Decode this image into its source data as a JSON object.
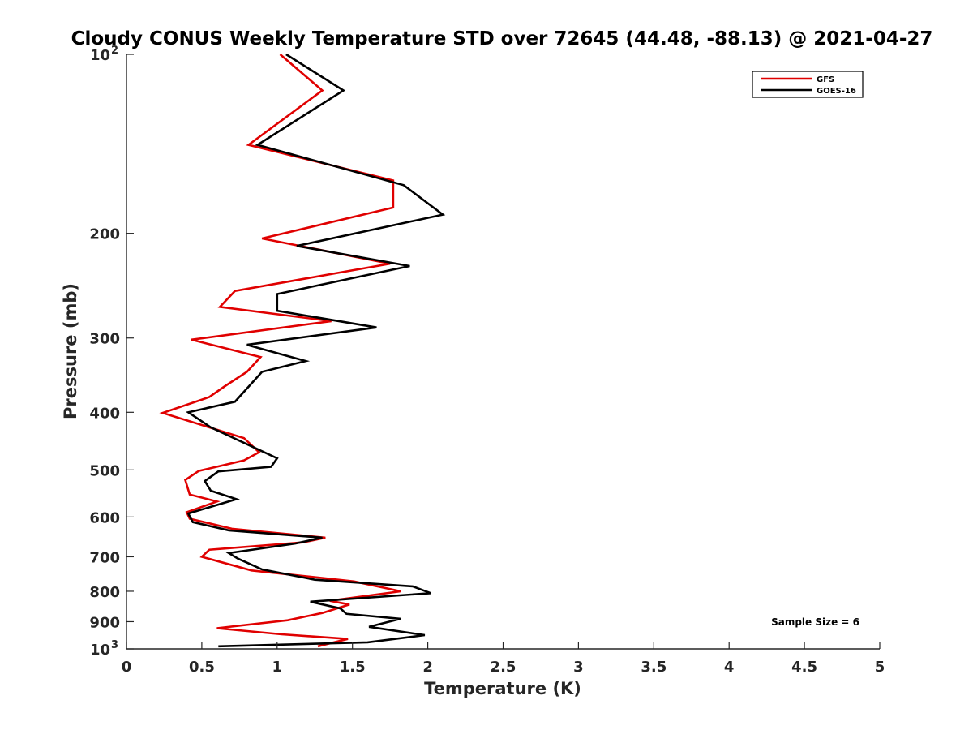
{
  "chart_data": {
    "type": "line",
    "title": "Cloudy CONUS Weekly Temperature STD over 72645 (44.48, -88.13) @ 2021-04-27",
    "xlabel": "Temperature (K)",
    "ylabel": "Pressure (mb)",
    "xlim": [
      0,
      5
    ],
    "ylim": [
      100,
      1000
    ],
    "y_scale": "log",
    "y_reversed": true,
    "grid": false,
    "legend_position": "top-right",
    "x_ticks": [
      "0",
      "0.5",
      "1",
      "1.5",
      "2",
      "2.5",
      "3",
      "3.5",
      "4",
      "4.5",
      "5"
    ],
    "y_ticks": [
      {
        "value": 100,
        "base": "10",
        "exp": "2"
      },
      {
        "value": 200,
        "label": "200"
      },
      {
        "value": 300,
        "label": "300"
      },
      {
        "value": 400,
        "label": "400"
      },
      {
        "value": 500,
        "label": "500"
      },
      {
        "value": 600,
        "label": "600"
      },
      {
        "value": 700,
        "label": "700"
      },
      {
        "value": 800,
        "label": "800"
      },
      {
        "value": 900,
        "label": "900"
      },
      {
        "value": 1000,
        "base": "10",
        "exp": "3"
      }
    ],
    "annotation": "Sample Size = 6",
    "series": [
      {
        "name": "GFS",
        "color": "#e00000",
        "points": [
          [
            1.02,
            100
          ],
          [
            1.3,
            115
          ],
          [
            0.81,
            142
          ],
          [
            1.77,
            163
          ],
          [
            1.77,
            181
          ],
          [
            0.9,
            204
          ],
          [
            1.75,
            225
          ],
          [
            0.72,
            250
          ],
          [
            0.62,
            266
          ],
          [
            1.36,
            281
          ],
          [
            0.43,
            302
          ],
          [
            0.89,
            323
          ],
          [
            0.8,
            342
          ],
          [
            0.65,
            362
          ],
          [
            0.55,
            377
          ],
          [
            0.24,
            401
          ],
          [
            0.78,
            442
          ],
          [
            0.88,
            467
          ],
          [
            0.78,
            482
          ],
          [
            0.48,
            502
          ],
          [
            0.39,
            520
          ],
          [
            0.42,
            550
          ],
          [
            0.6,
            565
          ],
          [
            0.4,
            589
          ],
          [
            0.42,
            604
          ],
          [
            0.7,
            628
          ],
          [
            1.32,
            650
          ],
          [
            1.17,
            662
          ],
          [
            0.55,
            681
          ],
          [
            0.5,
            700
          ],
          [
            0.83,
            738
          ],
          [
            1.51,
            770
          ],
          [
            1.82,
            800
          ],
          [
            1.35,
            830
          ],
          [
            1.48,
            842
          ],
          [
            1.3,
            870
          ],
          [
            1.07,
            895
          ],
          [
            0.6,
            923
          ],
          [
            1.03,
            945
          ],
          [
            1.47,
            962
          ],
          [
            1.27,
            990
          ]
        ]
      },
      {
        "name": "GOES-16",
        "color": "#000000",
        "points": [
          [
            1.06,
            100
          ],
          [
            1.44,
            115
          ],
          [
            0.87,
            142
          ],
          [
            1.84,
            166
          ],
          [
            2.1,
            186
          ],
          [
            1.13,
            210
          ],
          [
            1.88,
            227
          ],
          [
            1.0,
            253
          ],
          [
            1.0,
            270
          ],
          [
            1.66,
            288
          ],
          [
            0.8,
            308
          ],
          [
            1.19,
            328
          ],
          [
            0.9,
            342
          ],
          [
            0.72,
            384
          ],
          [
            0.41,
            400
          ],
          [
            0.56,
            424
          ],
          [
            0.81,
            454
          ],
          [
            1.0,
            478
          ],
          [
            0.96,
            494
          ],
          [
            0.61,
            503
          ],
          [
            0.52,
            522
          ],
          [
            0.56,
            542
          ],
          [
            0.73,
            560
          ],
          [
            0.41,
            592
          ],
          [
            0.44,
            612
          ],
          [
            0.68,
            632
          ],
          [
            1.3,
            650
          ],
          [
            1.12,
            665
          ],
          [
            0.68,
            690
          ],
          [
            0.74,
            705
          ],
          [
            0.9,
            735
          ],
          [
            1.25,
            765
          ],
          [
            1.9,
            785
          ],
          [
            2.02,
            806
          ],
          [
            1.22,
            833
          ],
          [
            1.42,
            855
          ],
          [
            1.46,
            873
          ],
          [
            1.82,
            890
          ],
          [
            1.61,
            918
          ],
          [
            1.98,
            948
          ],
          [
            1.6,
            975
          ],
          [
            0.61,
            990
          ]
        ]
      }
    ]
  }
}
